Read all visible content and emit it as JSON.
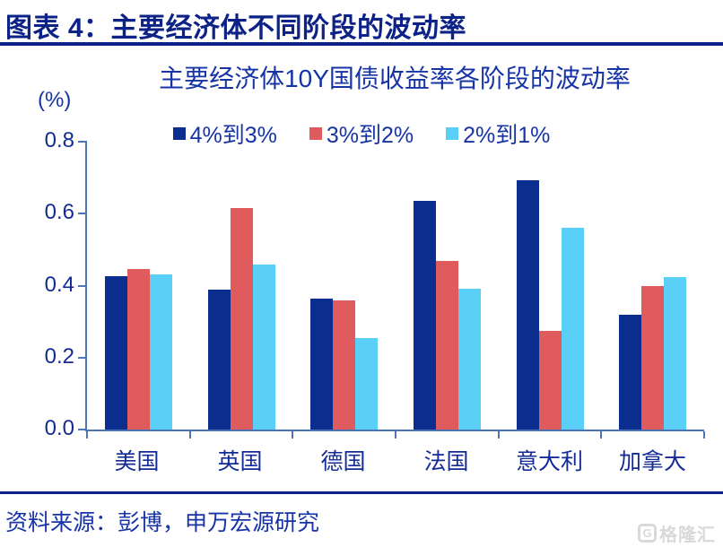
{
  "header": {
    "title": "图表 4：主要经济体不同阶段的波动率"
  },
  "chart_data": {
    "type": "bar",
    "title": "主要经济体10Y国债收益率各阶段的波动率",
    "unit_label": "(%)",
    "categories": [
      "美国",
      "英国",
      "德国",
      "法国",
      "意大利",
      "加拿大"
    ],
    "series": [
      {
        "name": "4%到3%",
        "color": "#0B2E8E",
        "values": [
          0.425,
          0.39,
          0.365,
          0.635,
          0.692,
          0.318
        ]
      },
      {
        "name": "3%到2%",
        "color": "#E05B5E",
        "values": [
          0.447,
          0.615,
          0.358,
          0.468,
          0.273,
          0.398
        ]
      },
      {
        "name": "2%到1%",
        "color": "#5BD0F6",
        "values": [
          0.431,
          0.459,
          0.255,
          0.392,
          0.562,
          0.423
        ]
      }
    ],
    "ylim": [
      0,
      0.8
    ],
    "yticks": [
      0.0,
      0.2,
      0.4,
      0.6,
      0.8
    ],
    "grid": false,
    "legend_position": "top",
    "colors": {
      "axis": "#4C74B9",
      "text": "#1734A6",
      "header": "#0C2286"
    }
  },
  "footer": {
    "source": "资料来源：彭博，申万宏源研究",
    "logo_glyph": "G",
    "logo_text": "格隆汇"
  }
}
